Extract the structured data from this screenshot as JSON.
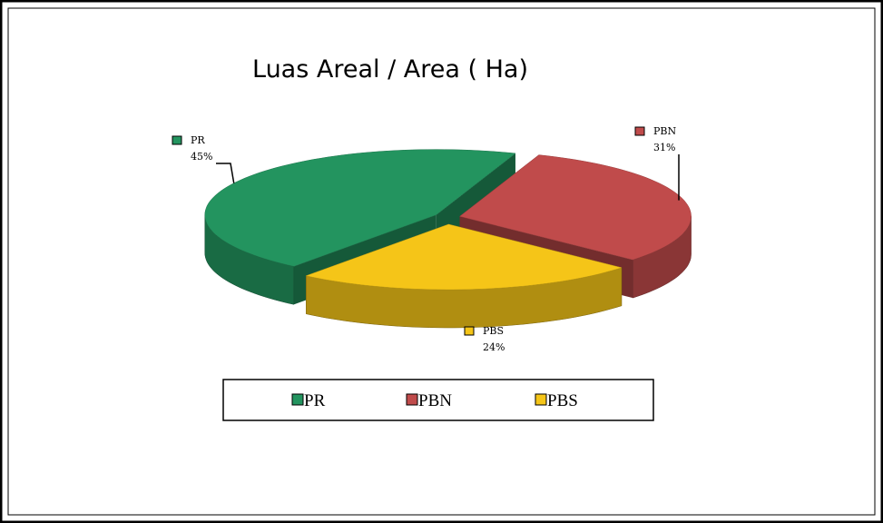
{
  "chart_data": {
    "type": "pie",
    "title": "Luas Areal / Area ( Ha)",
    "categories": [
      "PR",
      "PBN",
      "PBS"
    ],
    "values": [
      45,
      31,
      24
    ],
    "value_labels": [
      "45%",
      "31%",
      "24%"
    ],
    "colors": [
      "#23945f",
      "#c04b4b",
      "#f5c518"
    ],
    "legend": "bottom"
  }
}
